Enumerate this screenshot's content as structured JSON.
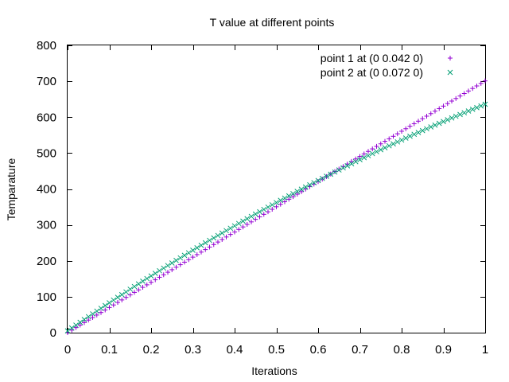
{
  "chart_data": {
    "type": "scatter",
    "title": "T value at different points",
    "xlabel": "Iterations",
    "ylabel": "Temparature",
    "xlim": [
      0,
      1
    ],
    "ylim": [
      0,
      800
    ],
    "xticks": [
      "0",
      "0.1",
      "0.2",
      "0.3",
      "0.4",
      "0.5",
      "0.6",
      "0.7",
      "0.8",
      "0.9",
      "1"
    ],
    "yticks": [
      "0",
      "100",
      "200",
      "300",
      "400",
      "500",
      "600",
      "700",
      "800"
    ],
    "legend_position": "top-right",
    "grid": false,
    "series": [
      {
        "name": "point 1 at (0 0.042 0)",
        "marker": "plus",
        "color": "#9400d3",
        "x_start": 0.0,
        "x_end": 1.0,
        "x_step": 0.01,
        "y_at_x0": 0,
        "y_at_x1": 701,
        "curve": "linear"
      },
      {
        "name": "point 2 at (0 0.072 0)",
        "marker": "cross",
        "color": "#009e73",
        "x_start": 0.0,
        "x_end": 1.0,
        "x_step": 0.01,
        "y_at_x0": 5,
        "y_at_x1": 636,
        "curve": "concave"
      }
    ]
  }
}
